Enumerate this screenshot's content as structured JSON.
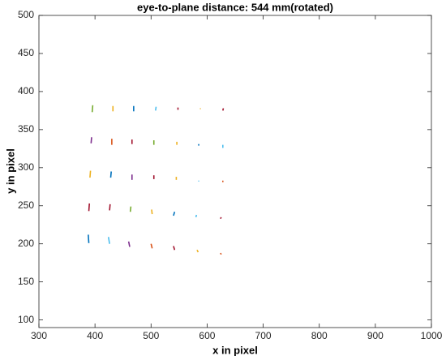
{
  "chart_data": {
    "type": "segments",
    "title": "eye-to-plane distance: 544 mm(rotated)",
    "xlabel": "x in pixel",
    "ylabel": "y in pixel",
    "xlim": [
      300,
      1000
    ],
    "ylim": [
      90,
      500
    ],
    "xticks": [
      300,
      400,
      500,
      600,
      700,
      800,
      900,
      1000
    ],
    "yticks": [
      100,
      150,
      200,
      250,
      300,
      350,
      400,
      450,
      500
    ],
    "segments": [
      {
        "color": "#77AC30",
        "x": [
          395,
          396
        ],
        "y": [
          373,
          382
        ]
      },
      {
        "color": "#EDB120",
        "x": [
          432,
          432
        ],
        "y": [
          374,
          381
        ]
      },
      {
        "color": "#0072BD",
        "x": [
          469,
          469
        ],
        "y": [
          374,
          381
        ]
      },
      {
        "color": "#4DBEEE",
        "x": [
          508,
          509
        ],
        "y": [
          375,
          380
        ]
      },
      {
        "color": "#A2142F",
        "x": [
          548,
          548
        ],
        "y": [
          376,
          379
        ]
      },
      {
        "color": "#EDB120",
        "x": [
          588,
          588
        ],
        "y": [
          377,
          378
        ]
      },
      {
        "color": "#A2142F",
        "x": [
          628,
          629
        ],
        "y": [
          375,
          378
        ]
      },
      {
        "color": "#7E2F8E",
        "x": [
          393,
          394
        ],
        "y": [
          332,
          340
        ]
      },
      {
        "color": "#D95319",
        "x": [
          430,
          430
        ],
        "y": [
          330,
          338
        ]
      },
      {
        "color": "#A2142F",
        "x": [
          466,
          466
        ],
        "y": [
          331,
          337
        ]
      },
      {
        "color": "#77AC30",
        "x": [
          505,
          505
        ],
        "y": [
          330,
          336
        ]
      },
      {
        "color": "#EDB120",
        "x": [
          546,
          546
        ],
        "y": [
          330,
          334
        ]
      },
      {
        "color": "#0072BD",
        "x": [
          585,
          585
        ],
        "y": [
          329,
          331
        ]
      },
      {
        "color": "#4DBEEE",
        "x": [
          628,
          628
        ],
        "y": [
          326,
          330
        ]
      },
      {
        "color": "#EDB120",
        "x": [
          391,
          392
        ],
        "y": [
          287,
          296
        ]
      },
      {
        "color": "#0072BD",
        "x": [
          428,
          429
        ],
        "y": [
          287,
          295
        ]
      },
      {
        "color": "#7E2F8E",
        "x": [
          466,
          466
        ],
        "y": [
          284,
          291
        ]
      },
      {
        "color": "#A2142F",
        "x": [
          505,
          505
        ],
        "y": [
          285,
          290
        ]
      },
      {
        "color": "#EDB120",
        "x": [
          545,
          545
        ],
        "y": [
          284,
          288
        ]
      },
      {
        "color": "#4DBEEE",
        "x": [
          585,
          585
        ],
        "y": [
          282,
          283
        ]
      },
      {
        "color": "#D95319",
        "x": [
          628,
          628
        ],
        "y": [
          281,
          283
        ]
      },
      {
        "color": "#A2142F",
        "x": [
          389,
          390
        ],
        "y": [
          243,
          253
        ]
      },
      {
        "color": "#A2142F",
        "x": [
          426,
          427
        ],
        "y": [
          244,
          252
        ]
      },
      {
        "color": "#77AC30",
        "x": [
          463,
          464
        ],
        "y": [
          242,
          249
        ]
      },
      {
        "color": "#EDB120",
        "x": [
          502,
          501
        ],
        "y": [
          239,
          245
        ]
      },
      {
        "color": "#0072BD",
        "x": [
          540,
          542
        ],
        "y": [
          237,
          242
        ]
      },
      {
        "color": "#4DBEEE",
        "x": [
          580,
          581
        ],
        "y": [
          235,
          238
        ]
      },
      {
        "color": "#A2142F",
        "x": [
          624,
          625
        ],
        "y": [
          233,
          235
        ]
      },
      {
        "color": "#0072BD",
        "x": [
          389,
          388
        ],
        "y": [
          201,
          212
        ]
      },
      {
        "color": "#4DBEEE",
        "x": [
          426,
          424
        ],
        "y": [
          200,
          209
        ]
      },
      {
        "color": "#7E2F8E",
        "x": [
          462,
          460
        ],
        "y": [
          196,
          203
        ]
      },
      {
        "color": "#D95319",
        "x": [
          502,
          500
        ],
        "y": [
          194,
          200
        ]
      },
      {
        "color": "#A2142F",
        "x": [
          542,
          540
        ],
        "y": [
          192,
          197
        ]
      },
      {
        "color": "#EDB120",
        "x": [
          584,
          582
        ],
        "y": [
          189,
          192
        ]
      },
      {
        "color": "#D95319",
        "x": [
          625,
          624
        ],
        "y": [
          186,
          188
        ]
      }
    ]
  }
}
